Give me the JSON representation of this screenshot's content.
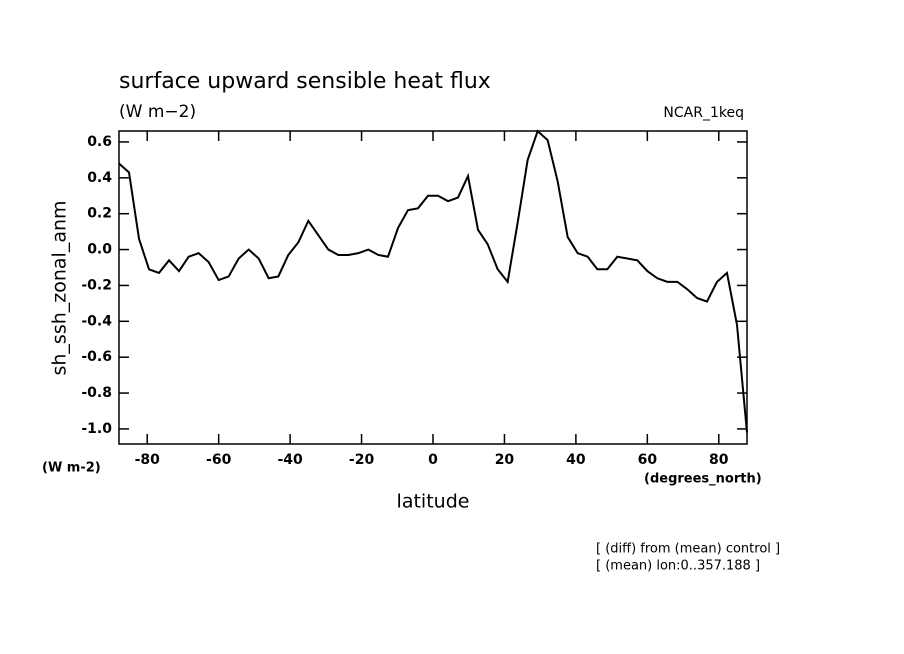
{
  "chart_data": {
    "type": "line",
    "title": "surface upward sensible heat flux",
    "subtitle": "(W m−2)",
    "run_label": "NCAR_1keq",
    "y_label": "sh_ssh_zonal_anm",
    "y_units": "(W m-2)",
    "x_label": "latitude",
    "x_units": "(degrees_north)",
    "notes": [
      "[ (diff) from (mean) control ]",
      "[ (mean) lon:0..357.188 ]"
    ],
    "x": [
      -87.9,
      -85.1,
      -82.3,
      -79.5,
      -76.7,
      -73.9,
      -71.1,
      -68.4,
      -65.6,
      -62.8,
      -60.0,
      -57.2,
      -54.4,
      -51.6,
      -48.8,
      -46.0,
      -43.3,
      -40.5,
      -37.7,
      -34.9,
      -32.1,
      -29.3,
      -26.5,
      -23.7,
      -20.9,
      -18.1,
      -15.3,
      -12.6,
      -9.8,
      -7.0,
      -4.2,
      -1.4,
      1.4,
      4.2,
      7.0,
      9.8,
      12.6,
      15.3,
      18.1,
      20.9,
      23.7,
      26.5,
      29.3,
      32.1,
      34.9,
      37.7,
      40.5,
      43.3,
      46.0,
      48.8,
      51.6,
      54.4,
      57.2,
      60.0,
      62.8,
      65.6,
      68.4,
      71.1,
      73.9,
      76.7,
      79.5,
      82.3,
      85.1,
      87.9
    ],
    "series": [
      {
        "color": "#000000",
        "values": [
          0.48,
          0.43,
          0.06,
          -0.11,
          -0.13,
          -0.06,
          -0.12,
          -0.04,
          -0.02,
          -0.07,
          -0.17,
          -0.15,
          -0.05,
          0.0,
          -0.05,
          -0.16,
          -0.15,
          -0.03,
          0.04,
          0.16,
          0.08,
          0.0,
          -0.03,
          -0.03,
          -0.02,
          0.0,
          -0.03,
          -0.04,
          0.12,
          0.22,
          0.23,
          0.3,
          0.3,
          0.27,
          0.29,
          0.41,
          0.11,
          0.03,
          -0.11,
          -0.18,
          0.15,
          0.5,
          0.66,
          0.61,
          0.38,
          0.07,
          -0.02,
          -0.04,
          -0.11,
          -0.11,
          -0.04,
          -0.05,
          -0.06,
          -0.12,
          -0.16,
          -0.18,
          -0.18,
          -0.22,
          -0.27,
          -0.29,
          -0.18,
          -0.13,
          -0.42,
          -1.02
        ]
      }
    ],
    "xlim": [
      -87.9,
      87.9
    ],
    "ylim": [
      -1.084,
      0.661
    ],
    "xticks": [
      -80,
      -60,
      -40,
      -20,
      0,
      20,
      40,
      60,
      80
    ],
    "yticks": [
      0.6,
      0.4,
      0.2,
      {
        "value": 0,
        "label": "0.0"
      },
      -0.2,
      -0.4,
      -0.6,
      -0.8,
      {
        "value": -1,
        "label": "-1.0"
      }
    ]
  }
}
